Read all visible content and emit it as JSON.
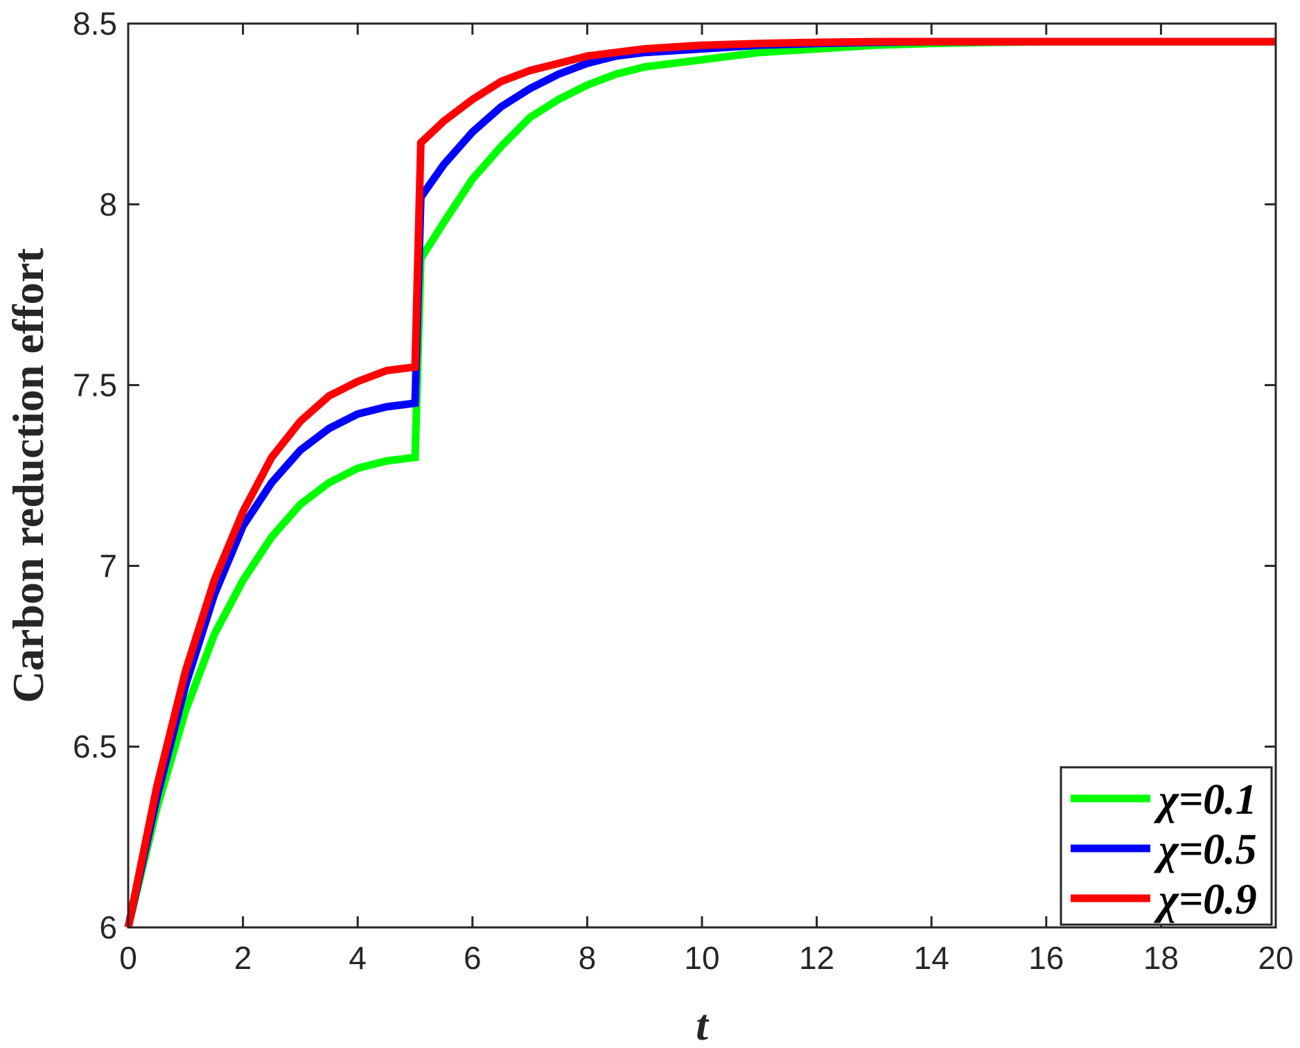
{
  "chart_data": {
    "type": "line",
    "xlabel": "t",
    "ylabel": "Carbon reduction effort",
    "xlim": [
      0,
      20
    ],
    "ylim": [
      6,
      8.5
    ],
    "xticks": [
      "0",
      "2",
      "4",
      "6",
      "8",
      "10",
      "12",
      "14",
      "16",
      "18",
      "20"
    ],
    "yticks": [
      "6",
      "6.5",
      "7",
      "7.5",
      "8",
      "8.5"
    ],
    "grid": false,
    "legend_position": "bottom-right",
    "x": [
      0,
      0.5,
      1,
      1.5,
      2,
      2.5,
      3,
      3.5,
      4,
      4.5,
      5,
      5.1,
      5.5,
      6,
      6.5,
      7,
      7.5,
      8,
      8.5,
      9,
      10,
      11,
      12,
      13,
      14,
      15,
      16,
      17,
      18,
      19,
      20
    ],
    "series": [
      {
        "name": "χ=0.1",
        "color": "#00ff00",
        "values": [
          6.0,
          6.33,
          6.6,
          6.81,
          6.96,
          7.08,
          7.17,
          7.23,
          7.27,
          7.29,
          7.3,
          7.85,
          7.95,
          8.07,
          8.16,
          8.24,
          8.29,
          8.33,
          8.36,
          8.38,
          8.4,
          8.42,
          8.43,
          8.44,
          8.445,
          8.448,
          8.45,
          8.45,
          8.45,
          8.45,
          8.45
        ]
      },
      {
        "name": "χ=0.5",
        "color": "#0000ff",
        "values": [
          6.0,
          6.36,
          6.67,
          6.92,
          7.11,
          7.23,
          7.32,
          7.38,
          7.42,
          7.44,
          7.45,
          8.02,
          8.11,
          8.2,
          8.27,
          8.32,
          8.36,
          8.39,
          8.41,
          8.42,
          8.43,
          8.44,
          8.445,
          8.448,
          8.45,
          8.45,
          8.45,
          8.45,
          8.45,
          8.45,
          8.45
        ]
      },
      {
        "name": "χ=0.9",
        "color": "#ff0000",
        "values": [
          6.0,
          6.39,
          6.71,
          6.96,
          7.15,
          7.3,
          7.4,
          7.47,
          7.51,
          7.54,
          7.55,
          8.17,
          8.23,
          8.29,
          8.34,
          8.37,
          8.39,
          8.41,
          8.42,
          8.43,
          8.44,
          8.445,
          8.448,
          8.45,
          8.45,
          8.45,
          8.45,
          8.45,
          8.45,
          8.45,
          8.45
        ]
      }
    ]
  }
}
